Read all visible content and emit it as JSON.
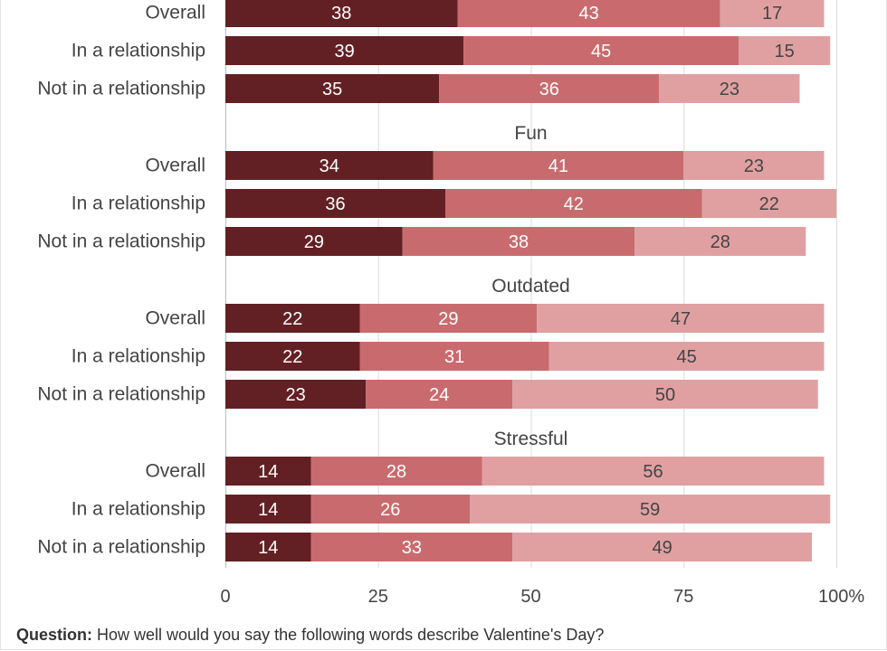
{
  "chart_data": {
    "type": "bar",
    "orientation": "horizontal",
    "stacked": true,
    "x_axis": {
      "range": [
        0,
        100
      ],
      "ticks": [
        0,
        25,
        50,
        75,
        100
      ],
      "tick_labels": [
        "0",
        "25",
        "50",
        "75",
        "100%"
      ]
    },
    "grid": true,
    "series_colors": [
      "#632024",
      "#c96b6e",
      "#e0a0a2"
    ],
    "groups": [
      {
        "name": "",
        "rows": [
          {
            "label": "Overall",
            "values": [
              38,
              43,
              17
            ]
          },
          {
            "label": "In a relationship",
            "values": [
              39,
              45,
              15
            ]
          },
          {
            "label": "Not in a relationship",
            "values": [
              35,
              36,
              23
            ]
          }
        ]
      },
      {
        "name": "Fun",
        "rows": [
          {
            "label": "Overall",
            "values": [
              34,
              41,
              23
            ]
          },
          {
            "label": "In a relationship",
            "values": [
              36,
              42,
              22
            ]
          },
          {
            "label": "Not in a relationship",
            "values": [
              29,
              38,
              28
            ]
          }
        ]
      },
      {
        "name": "Outdated",
        "rows": [
          {
            "label": "Overall",
            "values": [
              22,
              29,
              47
            ]
          },
          {
            "label": "In a relationship",
            "values": [
              22,
              31,
              45
            ]
          },
          {
            "label": "Not in a relationship",
            "values": [
              23,
              24,
              50
            ]
          }
        ]
      },
      {
        "name": "Stressful",
        "rows": [
          {
            "label": "Overall",
            "values": [
              14,
              28,
              56
            ]
          },
          {
            "label": "In a relationship",
            "values": [
              14,
              26,
              59
            ]
          },
          {
            "label": "Not in a relationship",
            "values": [
              14,
              33,
              49
            ]
          }
        ]
      }
    ]
  },
  "footer": {
    "question_label": "Question:",
    "question_text": "How well would you say the following words describe Valentine's Day?"
  }
}
